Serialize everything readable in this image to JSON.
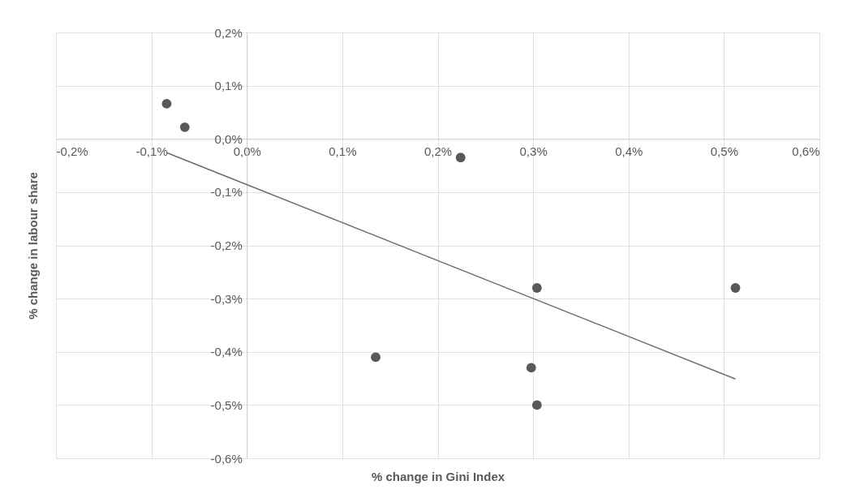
{
  "chart_data": {
    "type": "scatter",
    "xlabel": "% change in Gini Index",
    "ylabel": "% change in labour share",
    "grid": true,
    "xlim": [
      -0.2,
      0.6
    ],
    "ylim": [
      -0.6,
      0.2
    ],
    "xticks": [
      {
        "value": -0.2,
        "label": "-0,2%"
      },
      {
        "value": -0.1,
        "label": "-0,1%"
      },
      {
        "value": 0,
        "label": "0,0%"
      },
      {
        "value": 0.1,
        "label": "0,1%"
      },
      {
        "value": 0.2,
        "label": "0,2%"
      },
      {
        "value": 0.3,
        "label": "0,3%"
      },
      {
        "value": 0.4,
        "label": "0,4%"
      },
      {
        "value": 0.5,
        "label": "0,5%"
      },
      {
        "value": 0.6,
        "label": "0,6%"
      }
    ],
    "yticks": [
      {
        "value": -0.6,
        "label": "-0,6%"
      },
      {
        "value": -0.5,
        "label": "-0,5%"
      },
      {
        "value": -0.4,
        "label": "-0,4%"
      },
      {
        "value": -0.3,
        "label": "-0,3%"
      },
      {
        "value": -0.2,
        "label": "-0,2%"
      },
      {
        "value": -0.1,
        "label": "-0,1%"
      },
      {
        "value": 0,
        "label": "0,0%"
      },
      {
        "value": 0.1,
        "label": "0,1%"
      },
      {
        "value": 0.2,
        "label": "0,2%"
      }
    ],
    "series": [
      {
        "marker": "circle",
        "color": "#595959",
        "x": [
          -0.084,
          -0.065,
          0.224,
          0.304,
          0.512,
          0.135,
          0.298,
          0.304
        ],
        "values": [
          0.066,
          0.022,
          -0.035,
          -0.28,
          -0.28,
          -0.41,
          -0.43,
          -0.5
        ]
      },
      {
        "type": "line",
        "color": "#6e6e6e",
        "x": [
          -0.084,
          0.512
        ],
        "values": [
          -0.026,
          -0.451
        ]
      }
    ]
  }
}
